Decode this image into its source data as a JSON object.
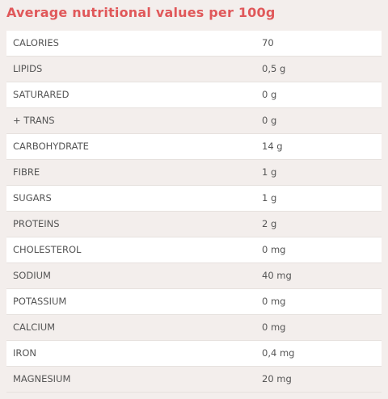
{
  "title": "Average nutritional values per 100g",
  "rows": [
    {
      "name": "CALORIES",
      "value": "70"
    },
    {
      "name": "LIPIDS",
      "value": "0,5 g"
    },
    {
      "name": "SATURARED",
      "value": "0 g"
    },
    {
      "name": "+ TRANS",
      "value": "0 g"
    },
    {
      "name": "CARBOHYDRATE",
      "value": "14 g"
    },
    {
      "name": "FIBRE",
      "value": "1 g"
    },
    {
      "name": "SUGARS",
      "value": "1 g"
    },
    {
      "name": "PROTEINS",
      "value": "2 g"
    },
    {
      "name": "CHOLESTEROL",
      "value": "0 mg"
    },
    {
      "name": "SODIUM",
      "value": "40 mg"
    },
    {
      "name": "POTASSIUM",
      "value": "0 mg"
    },
    {
      "name": "CALCIUM",
      "value": "0 mg"
    },
    {
      "name": "IRON",
      "value": "0,4 mg"
    },
    {
      "name": "MAGNESIUM",
      "value": "20 mg"
    }
  ]
}
